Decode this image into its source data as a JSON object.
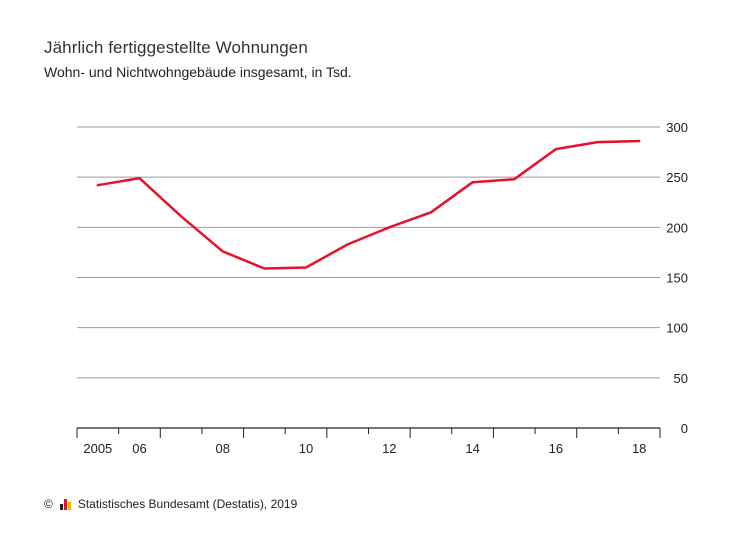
{
  "title": "Jährlich fertiggestellte Wohnungen",
  "subtitle": "Wohn- und Nichtwohngebäude insgesamt, in Tsd.",
  "source": {
    "copyright": "©",
    "text": "Statistisches Bundesamt (Destatis), 2019"
  },
  "colors": {
    "line": "#e8112d",
    "grid": "#9a9a9a",
    "axis": "#222222",
    "logo": [
      "#222222",
      "#e8112d",
      "#f5b800"
    ]
  },
  "chart_data": {
    "type": "line",
    "title": "Jährlich fertiggestellte Wohnungen",
    "subtitle": "Wohn- und Nichtwohngebäude insgesamt, in Tsd.",
    "x": [
      2005,
      2006,
      2007,
      2008,
      2009,
      2010,
      2011,
      2012,
      2013,
      2014,
      2015,
      2016,
      2017,
      2018
    ],
    "x_tick_labels": [
      {
        "value": 2005,
        "label": "2005"
      },
      {
        "value": 2006,
        "label": "06"
      },
      {
        "value": 2008,
        "label": "08"
      },
      {
        "value": 2010,
        "label": "10"
      },
      {
        "value": 2012,
        "label": "12"
      },
      {
        "value": 2014,
        "label": "14"
      },
      {
        "value": 2016,
        "label": "16"
      },
      {
        "value": 2018,
        "label": "18"
      }
    ],
    "series": [
      {
        "values": [
          242,
          249,
          211,
          176,
          159,
          160,
          183,
          200,
          215,
          245,
          248,
          278,
          285,
          286
        ]
      }
    ],
    "ylim": [
      0,
      300
    ],
    "yticks": [
      0,
      50,
      100,
      150,
      200,
      250,
      300
    ],
    "y_axis_side": "right",
    "grid": true,
    "legend": "none"
  }
}
